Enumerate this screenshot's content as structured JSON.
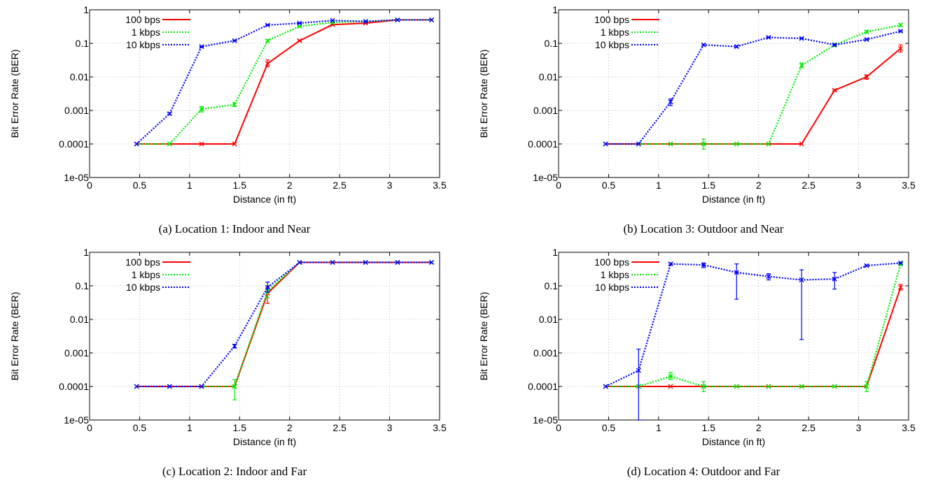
{
  "chart_data": [
    {
      "type": "line",
      "caption": "(a) Location 1: Indoor and Near",
      "xlabel": "Distance (in ft)",
      "ylabel": "Bit Error Rate (BER)",
      "xlim": [
        0,
        3.5
      ],
      "ylim": [
        1e-05,
        1
      ],
      "yscale": "log",
      "grid": true,
      "legend_position": "top-left",
      "x_ticks": [
        "0",
        "0.5",
        "1",
        "1.5",
        "2",
        "2.5",
        "3",
        "3.5"
      ],
      "y_ticks": [
        "1e-05",
        "0.0001",
        "0.001",
        "0.01",
        "0.1",
        "1"
      ],
      "x": [
        0.47,
        0.8,
        1.12,
        1.45,
        1.78,
        2.1,
        2.43,
        2.76,
        3.08,
        3.42
      ],
      "series": [
        {
          "name": "100 bps",
          "color": "#ff0000",
          "style": "solid",
          "values": [
            0.0001,
            0.0001,
            0.0001,
            0.0001,
            0.025,
            0.12,
            0.36,
            0.4,
            0.5,
            0.5
          ],
          "err_low": [
            0.0001,
            0.0001,
            0.0001,
            0.0001,
            0.02,
            0.115,
            0.35,
            0.39,
            0.49,
            0.49
          ],
          "err_high": [
            0.0001,
            0.0001,
            0.0001,
            0.0001,
            0.032,
            0.125,
            0.37,
            0.41,
            0.51,
            0.51
          ]
        },
        {
          "name": "1 kbps",
          "color": "#00ee00",
          "style": "dotted",
          "values": [
            0.0001,
            0.0001,
            0.0011,
            0.0015,
            0.12,
            0.32,
            0.42,
            0.45,
            0.5,
            0.5
          ],
          "err_low": [
            0.0001,
            0.0001,
            0.0009,
            0.0013,
            0.11,
            0.31,
            0.41,
            0.44,
            0.49,
            0.49
          ],
          "err_high": [
            0.0001,
            0.0001,
            0.0013,
            0.0017,
            0.13,
            0.33,
            0.43,
            0.46,
            0.51,
            0.51
          ]
        },
        {
          "name": "10 kbps",
          "color": "#0000ff",
          "style": "dotted",
          "values": [
            0.0001,
            0.0008,
            0.08,
            0.12,
            0.35,
            0.4,
            0.48,
            0.45,
            0.5,
            0.5
          ],
          "err_low": [
            0.0001,
            0.00075,
            0.078,
            0.115,
            0.34,
            0.39,
            0.47,
            0.44,
            0.49,
            0.49
          ],
          "err_high": [
            0.0001,
            0.00085,
            0.082,
            0.125,
            0.36,
            0.41,
            0.49,
            0.46,
            0.51,
            0.51
          ]
        }
      ]
    },
    {
      "type": "line",
      "caption": "(b) Location 3: Outdoor and Near",
      "xlabel": "Distance (in ft)",
      "ylabel": "Bit Error Rate (BER)",
      "xlim": [
        0,
        3.5
      ],
      "ylim": [
        1e-05,
        1
      ],
      "yscale": "log",
      "grid": true,
      "legend_position": "top-left",
      "x_ticks": [
        "0",
        "0.5",
        "1",
        "1.5",
        "2",
        "2.5",
        "3",
        "3.5"
      ],
      "y_ticks": [
        "1e-05",
        "0.0001",
        "0.001",
        "0.01",
        "0.1",
        "1"
      ],
      "x": [
        0.47,
        0.8,
        1.12,
        1.45,
        1.78,
        2.1,
        2.43,
        2.76,
        3.08,
        3.42
      ],
      "series": [
        {
          "name": "100 bps",
          "color": "#ff0000",
          "style": "solid",
          "values": [
            0.0001,
            0.0001,
            0.0001,
            0.0001,
            0.0001,
            0.0001,
            0.0001,
            0.004,
            0.01,
            0.07
          ],
          "err_low": [
            0.0001,
            0.0001,
            0.0001,
            0.0001,
            0.0001,
            0.0001,
            0.0001,
            0.0038,
            0.0085,
            0.055
          ],
          "err_high": [
            0.0001,
            0.0001,
            0.0001,
            0.0001,
            0.0001,
            0.0001,
            0.0001,
            0.0042,
            0.0115,
            0.09
          ]
        },
        {
          "name": "1 kbps",
          "color": "#00ee00",
          "style": "dotted",
          "values": [
            0.0001,
            0.0001,
            0.0001,
            0.0001,
            0.0001,
            0.0001,
            0.022,
            0.09,
            0.22,
            0.35
          ],
          "err_low": [
            0.0001,
            0.0001,
            0.0001,
            7e-05,
            0.0001,
            0.0001,
            0.019,
            0.08,
            0.2,
            0.32
          ],
          "err_high": [
            0.0001,
            0.0001,
            0.0001,
            0.00014,
            0.0001,
            0.0001,
            0.026,
            0.1,
            0.24,
            0.38
          ]
        },
        {
          "name": "10 kbps",
          "color": "#0000ff",
          "style": "dotted",
          "values": [
            0.0001,
            0.0001,
            0.0018,
            0.09,
            0.08,
            0.15,
            0.14,
            0.09,
            0.13,
            0.23
          ],
          "err_low": [
            0.0001,
            0.0001,
            0.0014,
            0.085,
            0.075,
            0.145,
            0.135,
            0.085,
            0.125,
            0.22
          ],
          "err_high": [
            0.0001,
            0.0001,
            0.0022,
            0.095,
            0.085,
            0.155,
            0.145,
            0.095,
            0.135,
            0.24
          ]
        }
      ]
    },
    {
      "type": "line",
      "caption": "(c) Location 2: Indoor and Far",
      "xlabel": "Distance (in ft)",
      "ylabel": "Bit Error Rate (BER)",
      "xlim": [
        0,
        3.5
      ],
      "ylim": [
        1e-05,
        1
      ],
      "yscale": "log",
      "grid": true,
      "legend_position": "top-left",
      "x_ticks": [
        "0",
        "0.5",
        "1",
        "1.5",
        "2",
        "2.5",
        "3",
        "3.5"
      ],
      "y_ticks": [
        "1e-05",
        "0.0001",
        "0.001",
        "0.01",
        "0.1",
        "1"
      ],
      "x": [
        0.47,
        0.8,
        1.12,
        1.45,
        1.78,
        2.1,
        2.43,
        2.76,
        3.08,
        3.42
      ],
      "series": [
        {
          "name": "100 bps",
          "color": "#ff0000",
          "style": "solid",
          "values": [
            0.0001,
            0.0001,
            0.0001,
            0.0001,
            0.06,
            0.5,
            0.5,
            0.5,
            0.5,
            0.5
          ],
          "err_low": [
            0.0001,
            0.0001,
            0.0001,
            0.0001,
            0.03,
            0.49,
            0.49,
            0.49,
            0.49,
            0.49
          ],
          "err_high": [
            0.0001,
            0.0001,
            0.0001,
            0.0001,
            0.09,
            0.51,
            0.51,
            0.51,
            0.51,
            0.51
          ]
        },
        {
          "name": "1 kbps",
          "color": "#00ee00",
          "style": "dotted",
          "values": [
            0.0001,
            0.0001,
            0.0001,
            0.0001,
            0.07,
            0.5,
            0.5,
            0.5,
            0.5,
            0.5
          ],
          "err_low": [
            0.0001,
            0.0001,
            0.0001,
            4e-05,
            0.045,
            0.49,
            0.49,
            0.49,
            0.49,
            0.49
          ],
          "err_high": [
            0.0001,
            0.0001,
            0.0001,
            0.00016,
            0.1,
            0.51,
            0.51,
            0.51,
            0.51,
            0.51
          ]
        },
        {
          "name": "10 kbps",
          "color": "#0000ff",
          "style": "dotted",
          "values": [
            0.0001,
            0.0001,
            0.0001,
            0.0016,
            0.09,
            0.5,
            0.5,
            0.5,
            0.5,
            0.5
          ],
          "err_low": [
            0.0001,
            0.0001,
            0.0001,
            0.0014,
            0.065,
            0.49,
            0.49,
            0.49,
            0.49,
            0.49
          ],
          "err_high": [
            0.0001,
            0.0001,
            0.0001,
            0.0018,
            0.13,
            0.51,
            0.51,
            0.51,
            0.51,
            0.51
          ]
        }
      ]
    },
    {
      "type": "line",
      "caption": "(d) Location 4: Outdoor and Far",
      "xlabel": "Distance (in ft)",
      "ylabel": "Bit Error Rate (BER)",
      "xlim": [
        0,
        3.5
      ],
      "ylim": [
        1e-05,
        1
      ],
      "yscale": "log",
      "grid": true,
      "legend_position": "top-left",
      "x_ticks": [
        "0",
        "0.5",
        "1",
        "1.5",
        "2",
        "2.5",
        "3",
        "3.5"
      ],
      "y_ticks": [
        "1e-05",
        "0.0001",
        "0.001",
        "0.01",
        "0.1",
        "1"
      ],
      "x": [
        0.47,
        0.8,
        1.12,
        1.45,
        1.78,
        2.1,
        2.43,
        2.76,
        3.08,
        3.42
      ],
      "series": [
        {
          "name": "100 bps",
          "color": "#ff0000",
          "style": "solid",
          "values": [
            0.0001,
            0.0001,
            0.0001,
            0.0001,
            0.0001,
            0.0001,
            0.0001,
            0.0001,
            0.0001,
            0.09
          ],
          "err_low": [
            0.0001,
            0.0001,
            0.0001,
            0.0001,
            0.0001,
            0.0001,
            0.0001,
            0.0001,
            0.0001,
            0.075
          ],
          "err_high": [
            0.0001,
            0.0001,
            0.0001,
            0.0001,
            0.0001,
            0.0001,
            0.0001,
            0.0001,
            0.0001,
            0.11
          ]
        },
        {
          "name": "1 kbps",
          "color": "#00ee00",
          "style": "dotted",
          "values": [
            0.0001,
            0.0001,
            0.0002,
            0.0001,
            0.0001,
            0.0001,
            0.0001,
            0.0001,
            0.0001,
            0.45
          ],
          "err_low": [
            0.0001,
            0.0001,
            0.00016,
            7e-05,
            0.0001,
            0.0001,
            0.0001,
            0.0001,
            7e-05,
            0.43
          ],
          "err_high": [
            0.0001,
            0.0001,
            0.00026,
            0.00014,
            0.0001,
            0.0001,
            0.0001,
            0.0001,
            0.00014,
            0.47
          ]
        },
        {
          "name": "10 kbps",
          "color": "#0000ff",
          "style": "dotted",
          "values": [
            0.0001,
            0.0003,
            0.45,
            0.42,
            0.25,
            0.19,
            0.15,
            0.16,
            0.4,
            0.48
          ],
          "err_low": [
            0.0001,
            1e-05,
            0.42,
            0.35,
            0.04,
            0.15,
            0.0025,
            0.08,
            0.38,
            0.46
          ],
          "err_high": [
            0.0001,
            0.0013,
            0.48,
            0.48,
            0.45,
            0.23,
            0.3,
            0.25,
            0.42,
            0.5
          ]
        }
      ]
    }
  ]
}
